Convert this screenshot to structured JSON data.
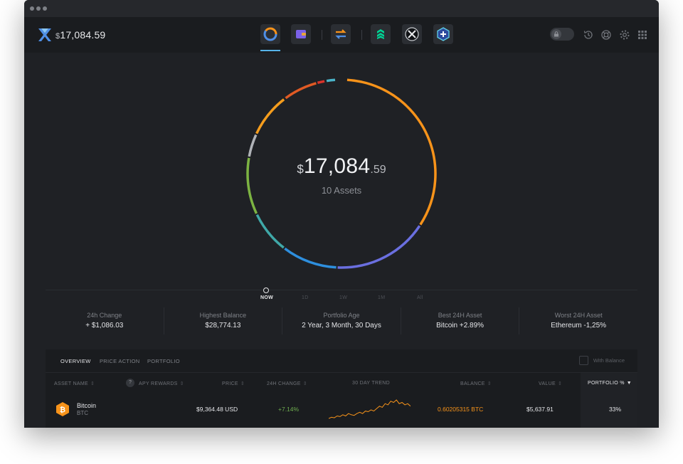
{
  "header": {
    "currency_symbol": "$",
    "balance": "17,084.59",
    "nav_icons": [
      "portfolio-icon",
      "wallet-icon",
      "exchange-icon",
      "compound-app-icon",
      "xlm-app-icon",
      "add-app-icon"
    ],
    "right_icons": [
      "lock-icon",
      "history-icon",
      "support-icon",
      "settings-icon",
      "apps-grid-icon"
    ]
  },
  "portfolio": {
    "currency_symbol": "$",
    "amount_int": "17,084",
    "amount_dec": ".59",
    "assets_label": "10 Assets"
  },
  "timeline": {
    "options": [
      "NOW",
      "1D",
      "1W",
      "1M",
      "All"
    ],
    "selected": "NOW"
  },
  "stats": [
    {
      "label": "24h Change",
      "value": "+ $1,086.03"
    },
    {
      "label": "Highest Balance",
      "value": "$28,774.13"
    },
    {
      "label": "Portfolio Age",
      "value": "2 Year, 3 Month, 30 Days"
    },
    {
      "label": "Best 24H Asset",
      "value": "Bitcoin +2.89%"
    },
    {
      "label": "Worst 24H Asset",
      "value": "Ethereum -1,25%"
    }
  ],
  "table": {
    "tabs": [
      "OVERVIEW",
      "PRICE ACTION",
      "PORTFOLIO"
    ],
    "active_tab": "OVERVIEW",
    "with_balance_label": "With Balance",
    "columns": {
      "asset_name": "ASSET NAME",
      "help": "?",
      "apy_rewards": "APY REWARDS",
      "price": "PRICE",
      "change_24h": "24H CHANGE",
      "trend_30d": "30 DAY TREND",
      "balance": "BALANCE",
      "value": "VALUE",
      "portfolio_pct": "PORTFOLIO %"
    },
    "sort_glyph": "⇕",
    "sort_active_glyph": "▼",
    "rows": [
      {
        "name": "Bitcoin",
        "ticker": "BTC",
        "price": "$9,364.48 USD",
        "change": "+7.14%",
        "balance": "0.60205315 BTC",
        "value": "$5,637.91",
        "portfolio_pct": "33%",
        "coin_color": "#f7931a",
        "trend": [
          2,
          3,
          2.5,
          4,
          3.5,
          5,
          4,
          6,
          5,
          4.5,
          6,
          7,
          6,
          8,
          7.5,
          9,
          8,
          10,
          12,
          11,
          14,
          13,
          16,
          15,
          17,
          14,
          15,
          13,
          14,
          12
        ]
      }
    ]
  },
  "colors": {
    "accent": "#56b3e8",
    "positive": "#6fae4f",
    "btc": "#f7931a"
  }
}
